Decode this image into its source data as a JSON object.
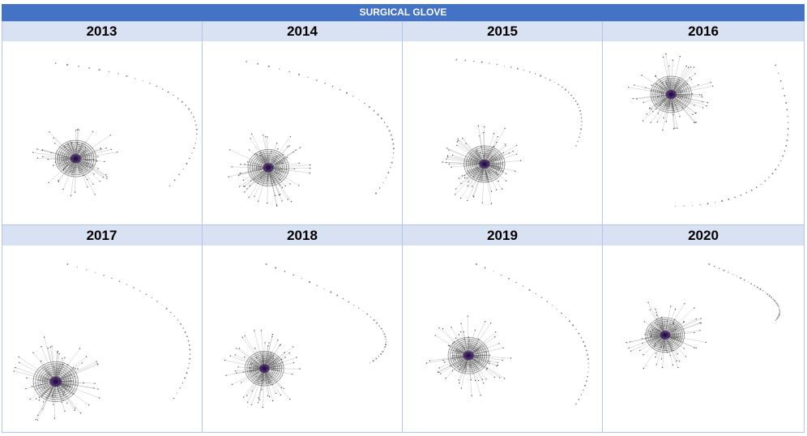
{
  "title": "SURGICAL GLOVE",
  "colors": {
    "title_bg": "#4472c4",
    "header_bg": "#d9e2f3",
    "edge": "#8a8a8a",
    "node": "#555555",
    "core": "#3b1f5e"
  },
  "panels": [
    {
      "year": "2013",
      "cluster": [
        0.37,
        0.64
      ],
      "spread": 1.0,
      "arc": {
        "start": [
          0.27,
          0.12
        ],
        "mid": [
          0.92,
          0.35
        ],
        "end": [
          0.84,
          0.79
        ]
      }
    },
    {
      "year": "2014",
      "cluster": [
        0.33,
        0.69
      ],
      "spread": 1.0,
      "arc": {
        "start": [
          0.22,
          0.11
        ],
        "mid": [
          0.88,
          0.4
        ],
        "end": [
          0.87,
          0.83
        ]
      }
    },
    {
      "year": "2015",
      "cluster": [
        0.41,
        0.67
      ],
      "spread": 1.0,
      "arc": {
        "start": [
          0.27,
          0.1
        ],
        "mid": [
          0.8,
          0.25
        ],
        "end": [
          0.87,
          0.57
        ]
      }
    },
    {
      "year": "2016",
      "cluster": [
        0.34,
        0.29
      ],
      "spread": 1.0,
      "arc": {
        "start": [
          0.86,
          0.13
        ],
        "mid": [
          0.86,
          0.7
        ],
        "end": [
          0.36,
          0.9
        ]
      }
    },
    {
      "year": "2017",
      "cluster": [
        0.27,
        0.73
      ],
      "spread": 1.1,
      "arc": {
        "start": [
          0.33,
          0.1
        ],
        "mid": [
          0.88,
          0.4
        ],
        "end": [
          0.86,
          0.82
        ]
      }
    },
    {
      "year": "2018",
      "cluster": [
        0.31,
        0.66
      ],
      "spread": 0.95,
      "arc": {
        "start": [
          0.32,
          0.1
        ],
        "mid": [
          0.86,
          0.4
        ],
        "end": [
          0.84,
          0.63
        ]
      }
    },
    {
      "year": "2019",
      "cluster": [
        0.33,
        0.59
      ],
      "spread": 1.0,
      "arc": {
        "start": [
          0.37,
          0.1
        ],
        "mid": [
          0.87,
          0.45
        ],
        "end": [
          0.87,
          0.85
        ]
      }
    },
    {
      "year": "2020",
      "cluster": [
        0.31,
        0.48
      ],
      "spread": 0.95,
      "arc": {
        "start": [
          0.53,
          0.1
        ],
        "mid": [
          0.83,
          0.27
        ],
        "end": [
          0.86,
          0.4
        ]
      }
    }
  ]
}
